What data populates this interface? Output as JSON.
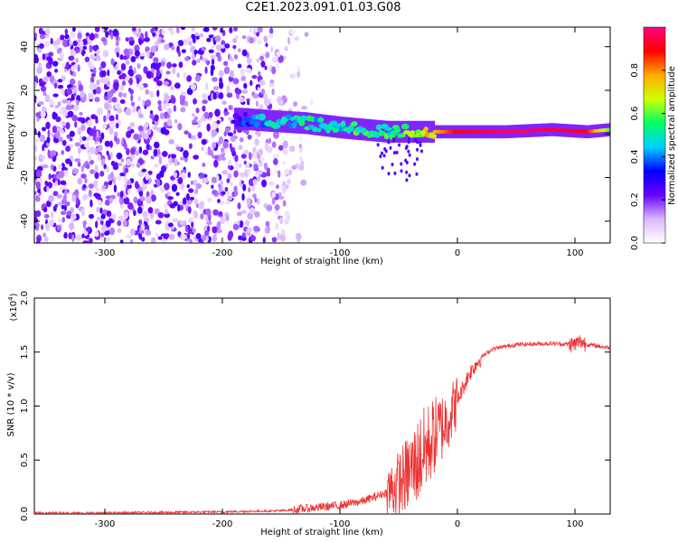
{
  "title": "C2E1.2023.091.01.03.G08",
  "chart_data": [
    {
      "type": "heatmap",
      "xlabel": "Height of straight line (km)",
      "ylabel": "Frequency (Hz)",
      "xlim": [
        -360,
        130
      ],
      "ylim": [
        -50,
        49
      ],
      "xticks": [
        -300,
        -200,
        -100,
        0,
        100
      ],
      "yticks": [
        -40,
        -20,
        0,
        20,
        40
      ],
      "colorbar": {
        "label": "Normalized spectral amplitude",
        "range": [
          0.0,
          1.0
        ],
        "ticks": [
          0.0,
          0.2,
          0.4,
          0.6,
          0.8
        ],
        "colormap": [
          "#ffffff",
          "#d9b8ff",
          "#6a00ff",
          "#0000ff",
          "#00d0ff",
          "#00ff66",
          "#d0ff00",
          "#ffaa00",
          "#ff0000",
          "#ff0080"
        ]
      },
      "signal_band": [
        {
          "x": -185,
          "freq": 7,
          "amp": 0.3
        },
        {
          "x": -160,
          "freq": 6,
          "amp": 0.45
        },
        {
          "x": -130,
          "freq": 5,
          "amp": 0.5
        },
        {
          "x": -100,
          "freq": 3,
          "amp": 0.45
        },
        {
          "x": -80,
          "freq": 2,
          "amp": 0.55
        },
        {
          "x": -60,
          "freq": 1,
          "amp": 0.5
        },
        {
          "x": -40,
          "freq": 1,
          "amp": 0.6
        },
        {
          "x": -20,
          "freq": 1,
          "amp": 0.75
        },
        {
          "x": 0,
          "freq": 1,
          "amp": 0.9
        },
        {
          "x": 40,
          "freq": 1,
          "amp": 0.98
        },
        {
          "x": 80,
          "freq": 2,
          "amp": 0.95
        },
        {
          "x": 110,
          "freq": 1,
          "amp": 0.9
        },
        {
          "x": 130,
          "freq": 2,
          "amp": 0.6
        }
      ]
    },
    {
      "type": "line",
      "xlabel": "Height of straight line (km)",
      "ylabel": "SNR (10 * v/v)",
      "multiplier_label": "(x10",
      "multiplier_exponent": "4",
      "multiplier_close": ")",
      "xlim": [
        -360,
        130
      ],
      "ylim": [
        0.0,
        2.0
      ],
      "xticks": [
        -300,
        -200,
        -100,
        0,
        100
      ],
      "yticks": [
        "0.0",
        "0.5",
        "1.0",
        "1.5",
        "2.0"
      ],
      "color": "#ee3333",
      "x": [
        -360,
        -300,
        -200,
        -150,
        -120,
        -100,
        -80,
        -60,
        -50,
        -40,
        -30,
        -20,
        -10,
        0,
        10,
        20,
        30,
        50,
        80,
        100,
        105,
        110,
        130
      ],
      "y": [
        0.01,
        0.01,
        0.02,
        0.03,
        0.06,
        0.08,
        0.12,
        0.2,
        0.28,
        0.4,
        0.55,
        0.72,
        0.85,
        1.05,
        1.3,
        1.45,
        1.53,
        1.57,
        1.58,
        1.57,
        1.6,
        1.57,
        1.54
      ]
    }
  ]
}
